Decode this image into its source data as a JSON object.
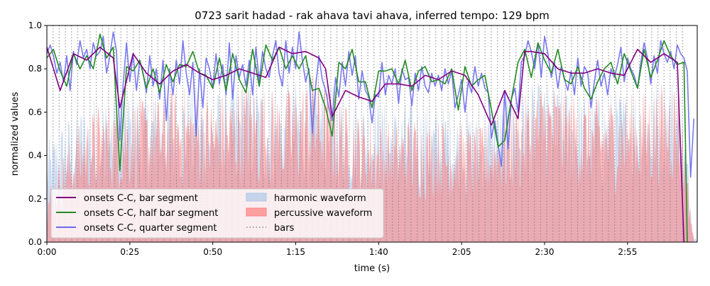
{
  "chart_data": {
    "type": "line",
    "title": "0723 sarit hadad - rak ahava tavi ahava, inferred tempo: 129 bpm",
    "xlabel": "time (s)",
    "ylabel": "normalized values",
    "xlim": [
      0,
      196
    ],
    "ylim": [
      0,
      1
    ],
    "x_ticks": [
      {
        "value": 0,
        "label": "0:00"
      },
      {
        "value": 25,
        "label": "0:25"
      },
      {
        "value": 50,
        "label": "0:50"
      },
      {
        "value": 75,
        "label": "1:15"
      },
      {
        "value": 100,
        "label": "1:40"
      },
      {
        "value": 125,
        "label": "2:05"
      },
      {
        "value": 150,
        "label": "2:30"
      },
      {
        "value": 175,
        "label": "2:55"
      }
    ],
    "y_ticks": [
      {
        "value": 0,
        "label": "0.0"
      },
      {
        "value": 0.2,
        "label": "0.2"
      },
      {
        "value": 0.4,
        "label": "0.4"
      },
      {
        "value": 0.6,
        "label": "0.6"
      },
      {
        "value": 0.8,
        "label": "0.8"
      },
      {
        "value": 1.0,
        "label": "1.0"
      }
    ],
    "bar_period_s": 1.86,
    "bar_range": [
      0,
      192
    ],
    "grid": false,
    "legend_position": "lower-left",
    "series": [
      {
        "name": "onsets C-C, bar segment",
        "color": "#800080",
        "x": [
          0,
          4,
          8,
          12,
          16,
          20,
          22,
          26,
          30,
          34,
          38,
          42,
          46,
          50,
          54,
          58,
          62,
          66,
          70,
          74,
          78,
          82,
          84,
          86,
          90,
          94,
          98,
          102,
          106,
          110,
          114,
          118,
          122,
          126,
          130,
          134,
          138,
          142,
          144,
          146,
          150,
          154,
          158,
          162,
          166,
          170,
          174,
          178,
          182,
          186,
          190,
          192
        ],
        "y": [
          0.9,
          0.7,
          0.87,
          0.84,
          0.9,
          0.85,
          0.62,
          0.87,
          0.78,
          0.73,
          0.79,
          0.82,
          0.78,
          0.75,
          0.77,
          0.8,
          0.78,
          0.76,
          0.9,
          0.87,
          0.88,
          0.85,
          0.8,
          0.58,
          0.7,
          0.67,
          0.65,
          0.73,
          0.73,
          0.72,
          0.77,
          0.75,
          0.79,
          0.77,
          0.68,
          0.54,
          0.7,
          0.57,
          0.88,
          0.88,
          0.87,
          0.8,
          0.78,
          0.78,
          0.8,
          0.78,
          0.77,
          0.89,
          0.83,
          0.87,
          0.83,
          0.0
        ]
      },
      {
        "name": "onsets C-C, half bar segment",
        "color": "#228B22",
        "x": [
          0,
          2,
          4,
          6,
          8,
          10,
          12,
          14,
          16,
          18,
          20,
          22,
          24,
          26,
          28,
          30,
          32,
          34,
          36,
          38,
          40,
          42,
          44,
          46,
          48,
          50,
          52,
          54,
          56,
          58,
          60,
          62,
          64,
          66,
          68,
          70,
          72,
          74,
          76,
          78,
          80,
          82,
          84,
          86,
          88,
          90,
          92,
          94,
          96,
          98,
          100,
          102,
          104,
          106,
          108,
          110,
          112,
          114,
          116,
          118,
          120,
          122,
          124,
          126,
          128,
          130,
          132,
          134,
          136,
          138,
          140,
          142,
          144,
          146,
          148,
          150,
          152,
          154,
          156,
          158,
          160,
          162,
          164,
          166,
          168,
          170,
          172,
          174,
          176,
          178,
          180,
          182,
          184,
          186,
          188,
          190,
          192,
          193
        ],
        "y": [
          0.85,
          0.89,
          0.79,
          0.72,
          0.87,
          0.8,
          0.86,
          0.8,
          0.96,
          0.85,
          0.9,
          0.33,
          0.81,
          0.79,
          0.84,
          0.71,
          0.8,
          0.69,
          0.82,
          0.74,
          0.82,
          0.81,
          0.88,
          0.78,
          0.77,
          0.71,
          0.85,
          0.7,
          0.87,
          0.75,
          0.69,
          0.89,
          0.72,
          0.91,
          0.84,
          0.9,
          0.8,
          0.86,
          0.8,
          0.86,
          0.7,
          0.71,
          0.62,
          0.49,
          0.83,
          0.8,
          0.89,
          0.74,
          0.74,
          0.62,
          0.79,
          0.79,
          0.8,
          0.73,
          0.84,
          0.7,
          0.79,
          0.81,
          0.74,
          0.75,
          0.73,
          0.8,
          0.61,
          0.81,
          0.72,
          0.75,
          0.77,
          0.61,
          0.44,
          0.47,
          0.66,
          0.83,
          0.89,
          0.76,
          0.92,
          0.84,
          0.78,
          0.89,
          0.75,
          0.73,
          0.81,
          0.71,
          0.66,
          0.74,
          0.8,
          0.83,
          0.73,
          0.87,
          0.79,
          0.71,
          0.89,
          0.76,
          0.84,
          0.93,
          0.86,
          0.82,
          0.83,
          0.0
        ]
      },
      {
        "name": "onsets C-C, quarter segment",
        "color": "#6A6AEE",
        "x": [
          0,
          1,
          2,
          3,
          4,
          5,
          6,
          7,
          8,
          9,
          10,
          11,
          12,
          13,
          14,
          15,
          16,
          17,
          18,
          19,
          20,
          21,
          22,
          23,
          24,
          25,
          26,
          27,
          28,
          29,
          30,
          31,
          32,
          33,
          34,
          35,
          36,
          37,
          38,
          39,
          40,
          41,
          42,
          43,
          44,
          45,
          46,
          47,
          48,
          49,
          50,
          51,
          52,
          53,
          54,
          55,
          56,
          57,
          58,
          59,
          60,
          61,
          62,
          63,
          64,
          65,
          66,
          67,
          68,
          69,
          70,
          71,
          72,
          73,
          74,
          75,
          76,
          77,
          78,
          79,
          80,
          81,
          82,
          83,
          84,
          85,
          86,
          87,
          88,
          89,
          90,
          91,
          92,
          93,
          94,
          95,
          96,
          97,
          98,
          99,
          100,
          101,
          102,
          103,
          104,
          105,
          106,
          107,
          108,
          109,
          110,
          111,
          112,
          113,
          114,
          115,
          116,
          117,
          118,
          119,
          120,
          121,
          122,
          123,
          124,
          125,
          126,
          127,
          128,
          129,
          130,
          131,
          132,
          133,
          134,
          135,
          136,
          137,
          138,
          139,
          140,
          141,
          142,
          143,
          144,
          145,
          146,
          147,
          148,
          149,
          150,
          151,
          152,
          153,
          154,
          155,
          156,
          157,
          158,
          159,
          160,
          161,
          162,
          163,
          164,
          165,
          166,
          167,
          168,
          169,
          170,
          171,
          172,
          173,
          174,
          175,
          176,
          177,
          178,
          179,
          180,
          181,
          182,
          183,
          184,
          185,
          186,
          187,
          188,
          189,
          190,
          191,
          192,
          193,
          194,
          195
        ],
        "y": [
          0.87,
          0.91,
          0.86,
          0.78,
          0.83,
          0.74,
          0.86,
          0.7,
          0.88,
          0.82,
          0.93,
          0.85,
          0.89,
          0.8,
          0.92,
          0.86,
          0.88,
          0.95,
          0.78,
          0.86,
          0.97,
          0.88,
          0.47,
          0.73,
          0.92,
          0.74,
          0.87,
          0.7,
          0.84,
          0.78,
          0.69,
          0.86,
          0.72,
          0.8,
          0.66,
          0.84,
          0.56,
          0.8,
          0.68,
          0.84,
          0.73,
          0.93,
          0.78,
          0.68,
          0.83,
          0.49,
          0.8,
          0.62,
          0.85,
          0.8,
          0.71,
          0.87,
          0.73,
          0.82,
          0.68,
          0.92,
          0.66,
          0.86,
          0.76,
          0.82,
          0.72,
          0.84,
          0.68,
          0.9,
          0.74,
          0.88,
          0.8,
          0.76,
          0.86,
          0.93,
          0.78,
          0.72,
          0.93,
          0.78,
          0.9,
          0.8,
          0.97,
          0.84,
          0.74,
          0.8,
          0.5,
          0.72,
          0.86,
          0.75,
          0.7,
          0.62,
          0.56,
          0.76,
          0.67,
          0.83,
          0.72,
          0.88,
          0.77,
          0.86,
          0.66,
          0.79,
          0.7,
          0.67,
          0.55,
          0.68,
          0.67,
          0.83,
          0.68,
          0.77,
          0.73,
          0.8,
          0.64,
          0.8,
          0.75,
          0.76,
          0.63,
          0.78,
          0.7,
          0.81,
          0.72,
          0.69,
          0.78,
          0.72,
          0.77,
          0.7,
          0.8,
          0.73,
          0.79,
          0.62,
          0.68,
          0.75,
          0.6,
          0.74,
          0.69,
          0.81,
          0.72,
          0.78,
          0.71,
          0.69,
          0.48,
          0.56,
          0.45,
          0.35,
          0.7,
          0.43,
          0.66,
          0.71,
          0.6,
          0.83,
          0.86,
          0.93,
          0.88,
          0.8,
          0.92,
          0.76,
          0.95,
          0.87,
          0.76,
          0.83,
          0.71,
          0.81,
          0.75,
          0.7,
          0.79,
          0.68,
          0.85,
          0.72,
          0.81,
          0.78,
          0.62,
          0.74,
          0.84,
          0.72,
          0.78,
          0.68,
          0.8,
          0.76,
          0.82,
          0.9,
          0.74,
          0.85,
          0.8,
          0.77,
          0.71,
          0.83,
          0.92,
          0.85,
          0.73,
          0.86,
          0.78,
          0.93,
          0.87,
          0.83,
          0.88,
          0.8,
          0.91,
          0.87,
          0.85,
          0.79,
          0.3,
          0.57
        ]
      }
    ],
    "areas": [
      {
        "name": "harmonic waveform",
        "color": "#aec7e8",
        "opacity": 0.6,
        "envelope_x": [
          0,
          5,
          10,
          15,
          20,
          25,
          30,
          35,
          40,
          45,
          50,
          55,
          60,
          65,
          70,
          75,
          80,
          85,
          90,
          95,
          100,
          105,
          110,
          115,
          120,
          125,
          130,
          135,
          140,
          145,
          150,
          155,
          160,
          165,
          170,
          175,
          180,
          185,
          190,
          193,
          195
        ],
        "envelope_y": [
          0.42,
          0.52,
          0.58,
          0.62,
          0.64,
          0.66,
          0.64,
          0.66,
          0.68,
          0.66,
          0.64,
          0.66,
          0.7,
          0.68,
          0.66,
          0.68,
          0.7,
          0.68,
          0.64,
          0.62,
          0.6,
          0.58,
          0.6,
          0.58,
          0.58,
          0.56,
          0.54,
          0.58,
          0.62,
          0.66,
          0.68,
          0.66,
          0.64,
          0.62,
          0.64,
          0.66,
          0.68,
          0.7,
          0.72,
          0.4,
          0.02
        ]
      },
      {
        "name": "percussive waveform",
        "color": "#ff7f7f",
        "opacity": 0.55,
        "envelope_x": [
          0,
          5,
          10,
          15,
          20,
          25,
          30,
          35,
          40,
          45,
          50,
          55,
          60,
          65,
          70,
          75,
          80,
          85,
          90,
          95,
          100,
          105,
          110,
          115,
          120,
          125,
          130,
          135,
          140,
          145,
          150,
          155,
          160,
          165,
          170,
          175,
          180,
          185,
          190,
          193,
          195
        ],
        "envelope_y": [
          0.22,
          0.38,
          0.5,
          0.58,
          0.6,
          0.62,
          0.6,
          0.62,
          0.66,
          0.64,
          0.62,
          0.64,
          0.68,
          0.66,
          0.64,
          0.66,
          0.72,
          0.66,
          0.58,
          0.54,
          0.52,
          0.5,
          0.54,
          0.52,
          0.52,
          0.5,
          0.48,
          0.52,
          0.58,
          0.62,
          0.7,
          0.66,
          0.62,
          0.6,
          0.62,
          0.62,
          0.64,
          0.66,
          0.72,
          0.3,
          0.0
        ]
      }
    ],
    "legend": [
      {
        "label": "onsets C-C, bar segment",
        "kind": "line",
        "color": "#800080"
      },
      {
        "label": "onsets C-C, half bar segment",
        "kind": "line",
        "color": "#228B22"
      },
      {
        "label": "onsets C-C, quarter segment",
        "kind": "line",
        "color": "#6A6AEE"
      },
      {
        "label": "harmonic waveform",
        "kind": "patch",
        "color": "#aec7e8"
      },
      {
        "label": "percussive waveform",
        "kind": "patch",
        "color": "#ff7f7f"
      },
      {
        "label": "bars",
        "kind": "dotted",
        "color": "#808080"
      }
    ]
  }
}
